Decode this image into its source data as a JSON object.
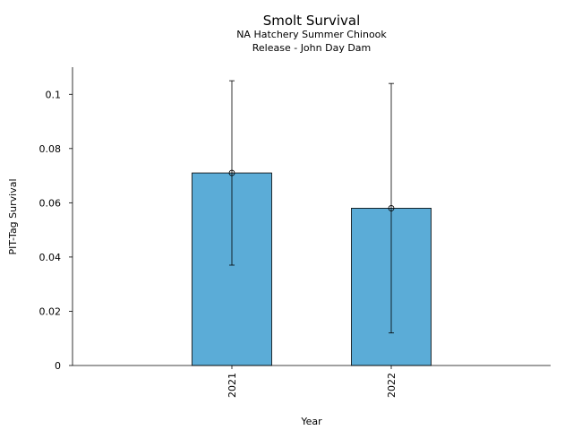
{
  "chart_data": {
    "type": "bar",
    "title": "Smolt Survival",
    "subtitle_lines": [
      "NA Hatchery Summer Chinook",
      "Release - John Day Dam"
    ],
    "xlabel": "Year",
    "ylabel": "PIT-Tag Survival",
    "categories": [
      "2021",
      "2022"
    ],
    "values": [
      0.071,
      0.058
    ],
    "error_low": [
      0.037,
      0.012
    ],
    "error_high": [
      0.105,
      0.104
    ],
    "ylim": [
      0,
      0.11
    ],
    "yticks": [
      0,
      0.02,
      0.04,
      0.06,
      0.08,
      0.1
    ],
    "ytick_labels": [
      "0",
      "0.02",
      "0.04",
      "0.06",
      "0.08",
      "0.1"
    ],
    "grid": false,
    "legend": "none",
    "colors": {
      "bar": "#5bacd7",
      "edge": "#000000"
    }
  }
}
